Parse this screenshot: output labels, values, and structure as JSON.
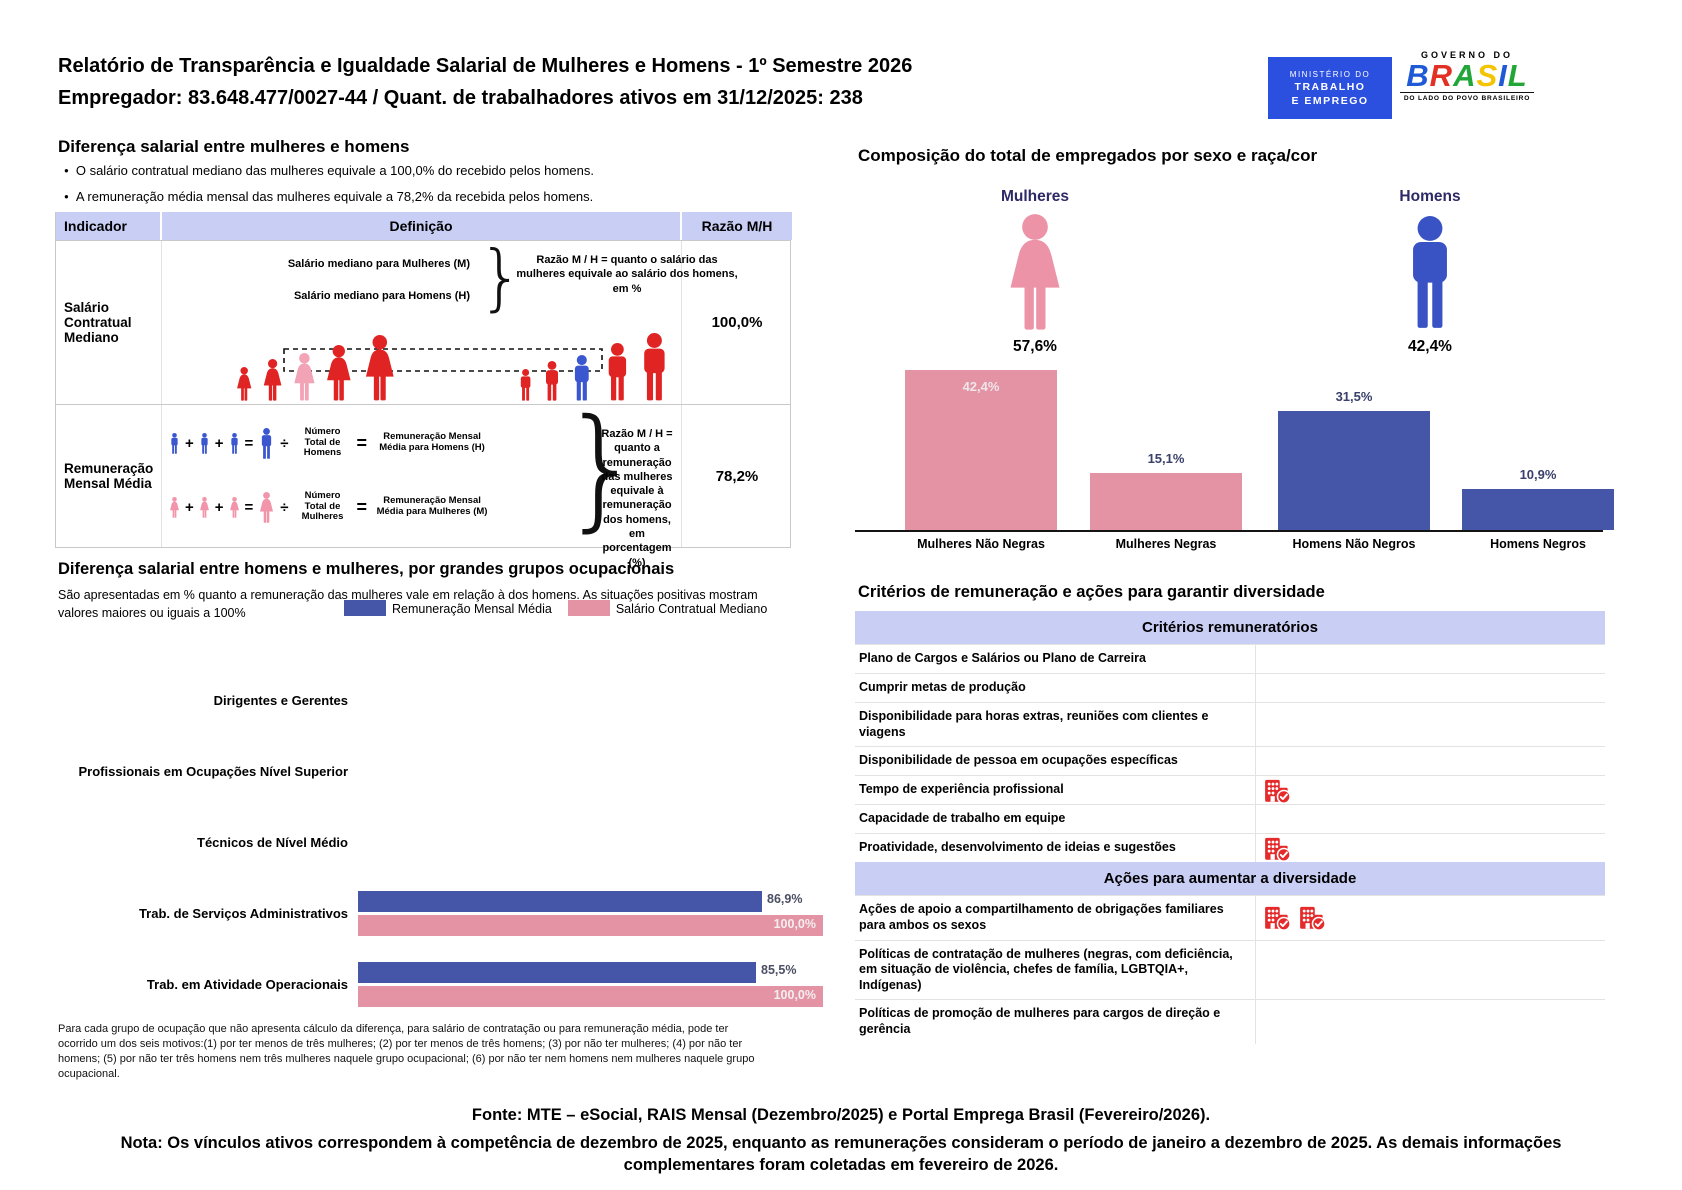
{
  "header": {
    "title_line1": "Relatório de Transparência e Igualdade Salarial de Mulheres e Homens - 1º Semestre 2026",
    "title_line2": "Empregador: 83.648.477/0027-44 / Quant. de trabalhadores ativos em 31/12/2025: 238",
    "mte_logo": {
      "line1": "MINISTÉRIO DO",
      "line2": "TRABALHO",
      "line3": "E EMPREGO"
    },
    "gov_logo": {
      "top": "GOVERNO DO",
      "name": "BRASIL",
      "tagline": "DO LADO DO POVO BRASILEIRO",
      "letter_colors": [
        "#1f59d6",
        "#e23025",
        "#23a638",
        "#f5c400",
        "#1f59d6",
        "#23a638"
      ]
    }
  },
  "salary_gap": {
    "heading": "Diferença salarial entre mulheres e homens",
    "bullets": [
      "O salário contratual mediano das mulheres equivale a 100,0% do recebido pelos homens.",
      "A remuneração média mensal das mulheres equivale a 78,2% da recebida pelos homens."
    ],
    "table": {
      "col_indicador": "Indicador",
      "col_definicao": "Definição",
      "col_razao": "Razão M/H",
      "row1": {
        "indicator": "Salário Contratual Mediano",
        "def_line1": "Salário mediano para Mulheres (M)",
        "def_line2": "Salário mediano para Homens (H)",
        "def_note": "Razão M / H = quanto o salário das mulheres equivale ao salário dos homens, em %",
        "ratio": "100,0%"
      },
      "row2": {
        "indicator": "Remuneração Mensal Média",
        "plus": "+",
        "equals": "=",
        "divide": "÷",
        "men_divisor": "Número Total de Homens",
        "men_result": "Remuneração Mensal Média para Homens (H)",
        "women_divisor": "Número Total de Mulheres",
        "women_result": "Remuneração Mensal Média para Mulheres (M)",
        "def_note": "Razão M / H = quanto a remuneração das mulheres equivale à remuneração dos homens, em porcentagem (%)",
        "ratio": "78,2%"
      }
    }
  },
  "composition": {
    "heading": "Composição do total de empregados por sexo e raça/cor",
    "women_label": "Mulheres",
    "women_total": "57,6%",
    "men_label": "Homens",
    "men_total": "42,4%",
    "bars": [
      {
        "label": "Mulheres Não Negras",
        "value": 42.4,
        "display": "42,4%"
      },
      {
        "label": "Mulheres Negras",
        "value": 15.1,
        "display": "15,1%"
      },
      {
        "label": "Homens Não Negros",
        "value": 31.5,
        "display": "31,5%"
      },
      {
        "label": "Homens Negros",
        "value": 10.9,
        "display": "10,9%"
      }
    ]
  },
  "occupational": {
    "heading": "Diferença salarial entre homens e mulheres, por grandes grupos ocupacionais",
    "subtitle": "São apresentadas em % quanto a remuneração das mulheres vale em relação à dos homens. As situações positivas mostram valores maiores ou iguais a 100%",
    "legend": [
      {
        "label": "Remuneração Mensal Média",
        "color": "#4556a8"
      },
      {
        "label": "Salário Contratual Mediano",
        "color": "#e393a4"
      }
    ],
    "rows": [
      {
        "label": "Dirigentes e Gerentes"
      },
      {
        "label": "Profissionais em Ocupações Nível Superior"
      },
      {
        "label": "Técnicos de Nível Médio"
      },
      {
        "label": "Trab. de Serviços Administrativos",
        "blue": 86.9,
        "blue_display": "86,9%",
        "pink": 100.0,
        "pink_display": "100,0%"
      },
      {
        "label": "Trab. em Atividade Operacionais",
        "blue": 85.5,
        "blue_display": "85,5%",
        "pink": 100.0,
        "pink_display": "100,0%"
      }
    ],
    "footnote": "Para cada grupo de ocupação que não apresenta cálculo da diferença, para salário de contratação ou para remuneração média, pode ter ocorrido um dos seis motivos:(1) por ter menos de três mulheres; (2) por ter menos de três homens; (3) por não ter mulheres; (4) por não ter homens; (5) por não ter três homens nem três mulheres naquele grupo ocupacional; (6) por não ter nem homens nem mulheres naquele grupo ocupacional."
  },
  "criteria": {
    "heading": "Critérios de remuneração e ações para garantir diversidade",
    "section1": "Critérios remuneratórios",
    "rows1": [
      {
        "label": "Plano de Cargos e Salários ou Plano de Carreira",
        "icons": 0
      },
      {
        "label": "Cumprir metas de produção",
        "icons": 0
      },
      {
        "label": "Disponibilidade para horas extras, reuniões com clientes e viagens",
        "icons": 0
      },
      {
        "label": "Disponibilidade de pessoa em ocupações específicas",
        "icons": 0
      },
      {
        "label": "Tempo de experiência profissional",
        "icons": 1
      },
      {
        "label": "Capacidade de trabalho em equipe",
        "icons": 0
      },
      {
        "label": "Proatividade, desenvolvimento de ideias e sugestões",
        "icons": 1
      }
    ],
    "section2": "Ações para aumentar a diversidade",
    "rows2": [
      {
        "label": "Ações de apoio a compartilhamento de obrigações familiares para ambos os sexos",
        "icons": 2
      },
      {
        "label": "Políticas de contratação de mulheres (negras, com deficiência, em situação de violência, chefes de família, LGBTQIA+, Indígenas)",
        "icons": 0
      },
      {
        "label": "Políticas de promoção de mulheres para cargos de direção e gerência",
        "icons": 0
      }
    ]
  },
  "footer": {
    "fonte": "Fonte: MTE – eSocial, RAIS Mensal (Dezembro/2025) e Portal Emprega Brasil (Fevereiro/2026).",
    "nota": "Nota: Os vínculos ativos correspondem à competência de dezembro de 2025, enquanto as remunerações consideram o período de janeiro a dezembro de 2025. As demais informações complementares foram coletadas em fevereiro de 2026."
  },
  "colors": {
    "pink_bar": "#e393a4",
    "blue_bar": "#4556a8",
    "lavender_header": "#c9cef5",
    "figure_red": "#e02424",
    "figure_pink": "#f2a3b6",
    "figure_blue": "#3a57d0",
    "mte_blue": "#2b50e0",
    "criteria_icon_red": "#e42a2a"
  },
  "chart_data": [
    {
      "type": "bar",
      "title": "Composição do total de empregados por sexo e raça/cor",
      "categories": [
        "Mulheres Não Negras",
        "Mulheres Negras",
        "Homens Não Negros",
        "Homens Negros"
      ],
      "values": [
        42.4,
        15.1,
        31.5,
        10.9
      ],
      "annotations": [
        "Mulheres 57,6%",
        "Homens 42,4%"
      ],
      "xlabel": "",
      "ylabel": "",
      "ylim": [
        0,
        45
      ],
      "grid": false,
      "legend_position": "none"
    },
    {
      "type": "bar",
      "orientation": "horizontal",
      "title": "Diferença salarial entre homens e mulheres, por grandes grupos ocupacionais",
      "categories": [
        "Dirigentes e Gerentes",
        "Profissionais em Ocupações Nível Superior",
        "Técnicos de Nível Médio",
        "Trab. de Serviços Administrativos",
        "Trab. em Atividade Operacionais"
      ],
      "series": [
        {
          "name": "Remuneração Mensal Média",
          "values": [
            null,
            null,
            null,
            86.9,
            85.5
          ]
        },
        {
          "name": "Salário Contratual Mediano",
          "values": [
            null,
            null,
            null,
            100.0,
            100.0
          ]
        }
      ],
      "xlim": [
        0,
        100
      ],
      "grid": false,
      "legend_position": "top"
    }
  ]
}
